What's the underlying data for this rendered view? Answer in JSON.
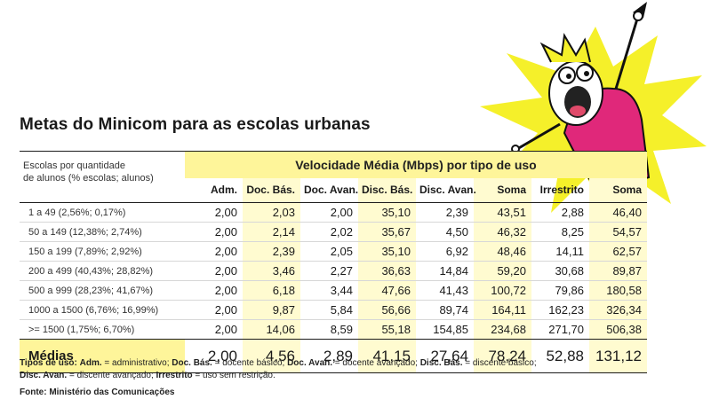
{
  "title": "Metas do Minicom para as escolas urbanas",
  "table": {
    "first_header": [
      "Escolas por quantidade",
      "de alunos (% escolas; alunos)"
    ],
    "group_header": "Velocidade Média (Mbps) por tipo de uso",
    "columns": [
      "Adm.",
      "Doc. Bás.",
      "Doc. Avan.",
      "Disc. Bás.",
      "Disc. Avan.",
      "Soma",
      "Irrestrito",
      "Soma"
    ],
    "rows": [
      {
        "label": "1 a 49 (2,56%; 0,17%)",
        "values": [
          "2,00",
          "2,03",
          "2,00",
          "35,10",
          "2,39",
          "43,51",
          "2,88",
          "46,40"
        ]
      },
      {
        "label": "50 a 149 (12,38%; 2,74%)",
        "values": [
          "2,00",
          "2,14",
          "2,02",
          "35,67",
          "4,50",
          "46,32",
          "8,25",
          "54,57"
        ]
      },
      {
        "label": "150 a 199 (7,89%; 2,92%)",
        "values": [
          "2,00",
          "2,39",
          "2,05",
          "35,10",
          "6,92",
          "48,46",
          "14,11",
          "62,57"
        ]
      },
      {
        "label": "200 a 499 (40,43%; 28,82%)",
        "values": [
          "2,00",
          "3,46",
          "2,27",
          "36,63",
          "14,84",
          "59,20",
          "30,68",
          "89,87"
        ]
      },
      {
        "label": "500 a 999 (28,23%; 41,67%)",
        "values": [
          "2,00",
          "6,18",
          "3,44",
          "47,66",
          "41,43",
          "100,72",
          "79,86",
          "180,58"
        ]
      },
      {
        "label": "1000 a 1500 (6,76%; 16,99%)",
        "values": [
          "2,00",
          "9,87",
          "5,84",
          "56,66",
          "89,74",
          "164,11",
          "162,23",
          "326,34"
        ]
      },
      {
        "label": ">= 1500 (1,75%; 6,70%)",
        "values": [
          "2,00",
          "14,06",
          "8,59",
          "55,18",
          "154,85",
          "234,68",
          "271,70",
          "506,38"
        ]
      }
    ],
    "averages": {
      "label": "Médias",
      "values": [
        "2,00",
        "4,56",
        "2,89",
        "41,15",
        "27,64",
        "78,24",
        "52,88",
        "131,12"
      ]
    }
  },
  "notes": {
    "prefix": "Tipos de uso:",
    "items": [
      {
        "abbr": "Adm.",
        "text": " = administrativo; "
      },
      {
        "abbr": "Doc. Bás.",
        "text": " = docente básico; "
      },
      {
        "abbr": "Doc. Avan.",
        "text": " = docente avançado; "
      },
      {
        "abbr": "Disc. Bás.",
        "text": " = discente básico;"
      },
      {
        "abbr": "Disc. Avan.",
        "text": " = discente avançado; "
      },
      {
        "abbr": "Irrestrito",
        "text": " = uso sem restrição."
      }
    ]
  },
  "source": "Fonte: Ministério das Comunicações",
  "colors": {
    "highlight": "#fef59a",
    "light_highlight": "#fffbd0",
    "burst": "#f5f02a",
    "shirt": "#e0287a"
  },
  "illustration": "cartoon-character-raising-fist-icon"
}
